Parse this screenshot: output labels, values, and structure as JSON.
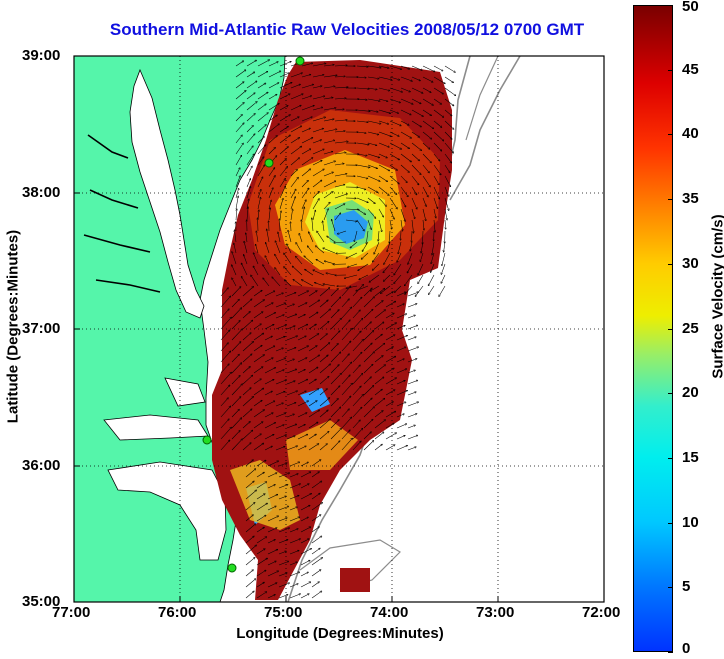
{
  "title": "Southern Mid-Atlantic Raw Velocities 2008/05/12 0700 GMT",
  "x_axis": {
    "label": "Longitude (Degrees:Minutes)",
    "ticks": [
      "77:00",
      "76:00",
      "75:00",
      "74:00",
      "73:00",
      "72:00"
    ]
  },
  "y_axis": {
    "label": "Latitude (Degrees:Minutes)",
    "ticks": [
      "39:00",
      "38:00",
      "37:00",
      "36:00",
      "35:00"
    ]
  },
  "colorbar": {
    "label": "Surface Velocity (cm/s)",
    "ticks": [
      "50",
      "45",
      "40",
      "35",
      "30",
      "25",
      "20",
      "15",
      "10",
      "5",
      "0"
    ],
    "range": [
      0,
      50
    ]
  },
  "colors": {
    "land": "#55f5aa",
    "coastline": "#000000",
    "title": "#1010e0",
    "bathymetry": "#8c8c8c"
  },
  "map_extent": {
    "lon": [
      -77,
      -72
    ],
    "lat": [
      35,
      39
    ]
  }
}
